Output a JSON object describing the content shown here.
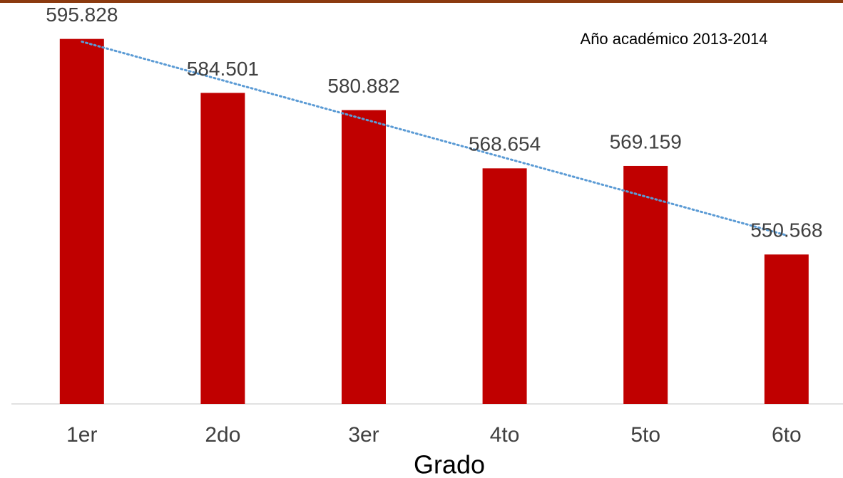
{
  "chart_data": {
    "type": "bar",
    "subtitle": "Año académico 2013-2014",
    "x_label": "Grado",
    "categories": [
      "1er",
      "2do",
      "3er",
      "4to",
      "5to",
      "6to"
    ],
    "values": [
      595828,
      584501,
      580882,
      568654,
      569159,
      550568
    ],
    "value_labels": [
      "595.828",
      "584.501",
      "580.882",
      "568.654",
      "569.159",
      "550.568"
    ],
    "color": "#c00000",
    "trendline": {
      "type": "linear",
      "color": "#5b9bd5"
    },
    "ylim": [
      519200,
      604000
    ]
  }
}
